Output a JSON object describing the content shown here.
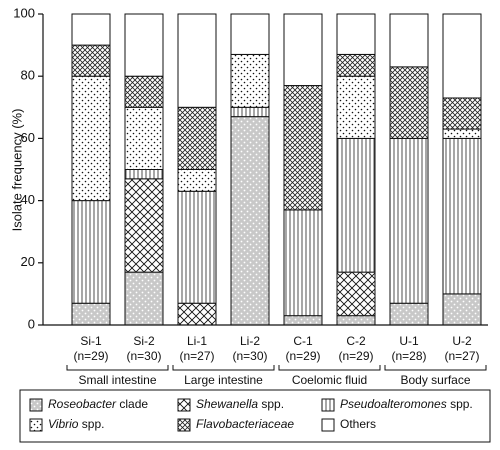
{
  "chart_data": {
    "type": "stacked_bar",
    "ylabel": "Isolate frequency (%)",
    "categories": [
      "Si-1",
      "Si-2",
      "Li-1",
      "Li-2",
      "C-1",
      "C-2",
      "U-1",
      "U-2"
    ],
    "sample_sizes": [
      "(n=29)",
      "(n=30)",
      "(n=27)",
      "(n=30)",
      "(n=29)",
      "(n=29)",
      "(n=28)",
      "(n=27)"
    ],
    "groups": [
      "Small intestine",
      "Large intestine",
      "Coelomic fluid",
      "Body surface"
    ],
    "ylim": [
      0,
      100
    ],
    "yticks": [
      0,
      20,
      40,
      60,
      80,
      100
    ],
    "series": [
      {
        "name": "Roseobacter clade",
        "italic_words": 1,
        "pattern": "roseo",
        "values": [
          7,
          17,
          0,
          67,
          3,
          3,
          7,
          10
        ]
      },
      {
        "name": "Shewanella spp.",
        "italic_words": 1,
        "pattern": "shew",
        "values": [
          0,
          30,
          7,
          0,
          0,
          14,
          0,
          0
        ]
      },
      {
        "name": "Pseudoalteromones spp.",
        "italic_words": 1,
        "pattern": "pseudo",
        "values": [
          33,
          3,
          36,
          3,
          34,
          43,
          53,
          50
        ]
      },
      {
        "name": "Vibrio spp.",
        "italic_words": 1,
        "pattern": "vibrio",
        "values": [
          40,
          20,
          7,
          17,
          0,
          20,
          0,
          3
        ]
      },
      {
        "name": "Flavobacteriaceae",
        "italic_words": 1,
        "pattern": "flavo",
        "values": [
          10,
          10,
          20,
          0,
          40,
          7,
          23,
          10
        ]
      },
      {
        "name": "Others",
        "italic_words": 0,
        "pattern": "others",
        "values": [
          10,
          20,
          30,
          13,
          23,
          13,
          17,
          27
        ]
      }
    ]
  }
}
